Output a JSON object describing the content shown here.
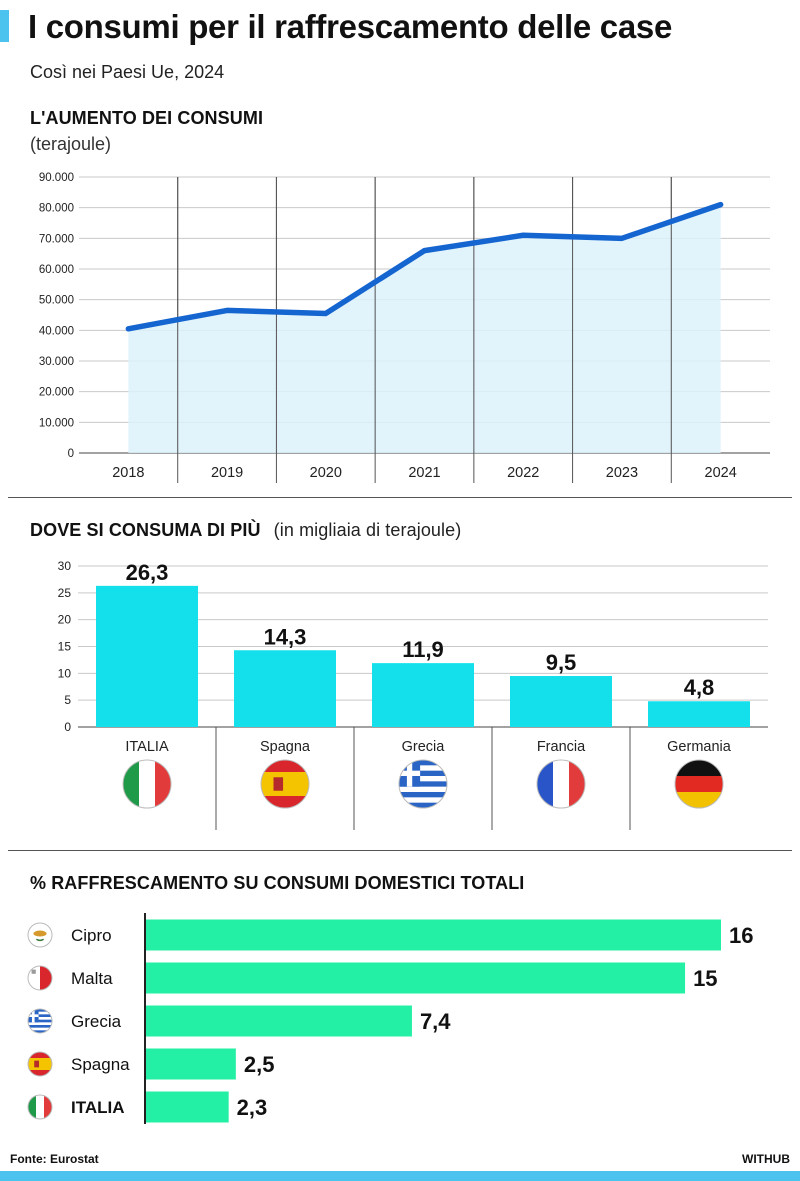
{
  "header": {
    "title": "I consumi per il raffrescamento delle case",
    "subtitle": "Così nei Paesi Ue, 2024"
  },
  "footer": {
    "source": "Fonte: Eurostat",
    "brand": "WITHUB"
  },
  "colors": {
    "accent": "#4cc3ee",
    "line": "#1565d0",
    "area": "#dcf2fb",
    "bar_cyan": "#13e0eb",
    "bar_green": "#23f0a4"
  },
  "chart_data": [
    {
      "type": "area",
      "title": "L'AUMENTO DEI CONSUMI",
      "unit": "(terajoule)",
      "x": [
        "2018",
        "2019",
        "2020",
        "2021",
        "2022",
        "2023",
        "2024"
      ],
      "values": [
        40500,
        46500,
        45500,
        66000,
        71000,
        70000,
        81000
      ],
      "yticks": [
        "0",
        "10.000",
        "20.000",
        "30.000",
        "40.000",
        "50.000",
        "60.000",
        "70.000",
        "80.000",
        "90.000"
      ],
      "ylim": [
        0,
        90000
      ],
      "grid": true
    },
    {
      "type": "bar",
      "title": "DOVE SI CONSUMA DI PIÙ",
      "unit": "(in migliaia di terajoule)",
      "categories": [
        "ITALIA",
        "Spagna",
        "Grecia",
        "Francia",
        "Germania"
      ],
      "values": [
        26.3,
        14.3,
        11.9,
        9.5,
        4.8
      ],
      "labels": [
        "26,3",
        "14,3",
        "11,9",
        "9,5",
        "4,8"
      ],
      "flags": [
        "italy-flag",
        "spain-flag",
        "greece-flag",
        "france-flag",
        "germany-flag"
      ],
      "yticks": [
        "0",
        "5",
        "10",
        "15",
        "20",
        "25",
        "30"
      ],
      "ylim": [
        0,
        30
      ],
      "grid": true
    },
    {
      "type": "bar",
      "orientation": "horizontal",
      "title": "% RAFFRESCAMENTO SU CONSUMI DOMESTICI TOTALI",
      "categories": [
        "Cipro",
        "Malta",
        "Grecia",
        "Spagna",
        "ITALIA"
      ],
      "values": [
        16,
        15,
        7.4,
        2.5,
        2.3
      ],
      "labels": [
        "16",
        "15",
        "7,4",
        "2,5",
        "2,3"
      ],
      "flags": [
        "cyprus-flag",
        "malta-flag",
        "greece-flag",
        "spain-flag",
        "italy-flag"
      ],
      "xlim": [
        0,
        16
      ]
    }
  ]
}
